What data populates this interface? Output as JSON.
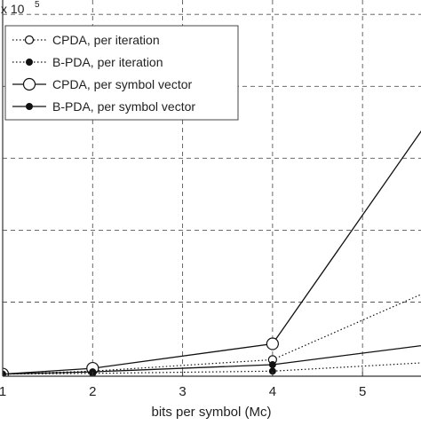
{
  "chart_data": {
    "type": "line",
    "xlabel": "bits per symbol (Mc)",
    "ylabel": "",
    "y_multiplier_base": "x 10",
    "y_multiplier_exp": "5",
    "xlim": [
      1,
      5.65
    ],
    "ylim": [
      -0.03,
      5.2
    ],
    "x_ticks": [
      1,
      2,
      3,
      4,
      5
    ],
    "x_tick_labels": [
      "1",
      "2",
      "3",
      "4",
      "5"
    ],
    "y_grid_values": [
      1,
      2,
      3,
      4,
      5
    ],
    "grid": true,
    "legend_position": "top-left",
    "series": [
      {
        "name": "CPDA, per iteration",
        "line_style": "dotted",
        "marker": "open-circle",
        "marker_size": "small",
        "x": [
          1,
          2,
          4,
          6
        ],
        "y": [
          0,
          0.04,
          0.2,
          1.3
        ]
      },
      {
        "name": "B-PDA, per iteration",
        "line_style": "dotted",
        "marker": "filled-dot",
        "marker_size": "small",
        "x": [
          1,
          2,
          4,
          6
        ],
        "y": [
          0,
          0.01,
          0.04,
          0.18
        ]
      },
      {
        "name": "CPDA, per symbol vector",
        "line_style": "solid",
        "marker": "open-circle",
        "marker_size": "large",
        "x": [
          1,
          2,
          4,
          6
        ],
        "y": [
          0,
          0.08,
          0.42,
          4.0
        ]
      },
      {
        "name": "B-PDA, per symbol vector",
        "line_style": "solid",
        "marker": "filled-dot",
        "marker_size": "small",
        "x": [
          1,
          2,
          4,
          6
        ],
        "y": [
          0,
          0.03,
          0.13,
          0.45
        ]
      }
    ]
  }
}
